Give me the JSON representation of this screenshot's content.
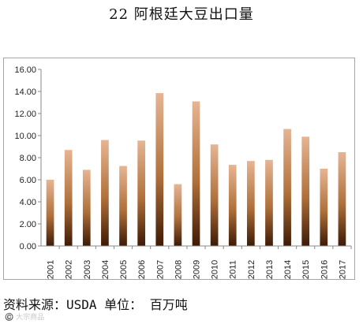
{
  "title": "22 阿根廷大豆出口量",
  "source_note": "资料来源：USDA 单位： 百万吨",
  "watermark": "©️ 大宗商品",
  "colors": {
    "bar_top": "#e6b594",
    "bar_mid": "#b0703a",
    "bar_bottom": "#3d1a05",
    "axis": "#888888",
    "frame": "#a6a6a6"
  },
  "chart_data": {
    "type": "bar",
    "categories": [
      "2001",
      "2002",
      "2003",
      "2004",
      "2005",
      "2006",
      "2007",
      "2008",
      "2009",
      "2010",
      "2011",
      "2012",
      "2013",
      "2014",
      "2015",
      "2016",
      "2017"
    ],
    "values": [
      6.0,
      8.7,
      6.9,
      9.6,
      7.25,
      9.55,
      13.85,
      5.6,
      13.1,
      9.2,
      7.35,
      7.7,
      7.8,
      10.6,
      9.9,
      7.0,
      8.5
    ],
    "ylim": [
      0,
      16
    ],
    "yticks": [
      "0.00",
      "2.00",
      "4.00",
      "6.00",
      "8.00",
      "10.00",
      "12.00",
      "14.00",
      "16.00"
    ],
    "grid": false,
    "xlabel": "",
    "ylabel": ""
  }
}
